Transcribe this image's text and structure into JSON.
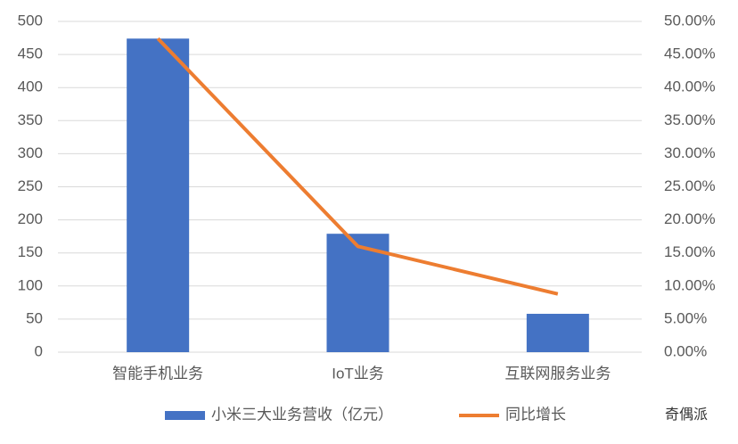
{
  "chart_data": {
    "type": "bar_line",
    "categories": [
      "智能手机业务",
      "IoT业务",
      "互联网服务业务"
    ],
    "series": [
      {
        "name": "小米三大业务营收（亿元）",
        "type": "bar",
        "color": "#4472c4",
        "values": [
          474,
          179,
          58
        ]
      },
      {
        "name": "同比增长",
        "type": "line",
        "color": "#ed7d31",
        "axis": "y2",
        "values": [
          47.4,
          16.0,
          8.8
        ]
      }
    ],
    "ylim": [
      0,
      500
    ],
    "yticks": [
      0,
      50,
      100,
      150,
      200,
      250,
      300,
      350,
      400,
      450,
      500
    ],
    "y2lim": [
      0,
      50
    ],
    "y2ticks": [
      {
        "value": 0,
        "label": "0.00%"
      },
      {
        "value": 5,
        "label": "5.00%"
      },
      {
        "value": 10,
        "label": "10.00%"
      },
      {
        "value": 15,
        "label": "15.00%"
      },
      {
        "value": 20,
        "label": "20.00%"
      },
      {
        "value": 25,
        "label": "25.00%"
      },
      {
        "value": 30,
        "label": "30.00%"
      },
      {
        "value": 35,
        "label": "35.00%"
      },
      {
        "value": 40,
        "label": "40.00%"
      },
      {
        "value": 45,
        "label": "45.00%"
      },
      {
        "value": 50,
        "label": "50.00%"
      }
    ],
    "grid": true,
    "legend": "bottom",
    "watermark": "奇偶派"
  }
}
